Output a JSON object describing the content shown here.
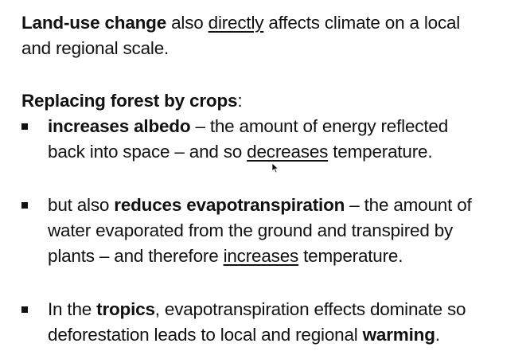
{
  "intro": {
    "bold": "Land-use change",
    "text1": " also ",
    "underlined": "directly",
    "text2": " affects climate on a local",
    "line2": "and regional scale."
  },
  "heading": {
    "bold": "Replacing forest by crops",
    "colon": ":"
  },
  "bullets": [
    {
      "bold": "increases albedo",
      "text1": " – the amount of energy reflected",
      "line2_pre": "back into space – and so ",
      "underlined": "decreases",
      "line2_post": " temperature."
    },
    {
      "pre": "but also ",
      "bold": "reduces evapotranspiration",
      "text1": " – the amount of",
      "line2": "water evaporated from the ground and transpired by",
      "line3_pre": "plants – and therefore ",
      "underlined": "increases",
      "line3_post": " temperature."
    },
    {
      "pre": "In the ",
      "bold": "tropics",
      "text1": ", evapotranspiration effects dominate so",
      "line2_pre": "deforestation leads to local and regional ",
      "bold2": "warming",
      "line2_post": "."
    }
  ],
  "icons": {
    "cursor": "mouse-pointer-icon",
    "bullet": "square-bullet-icon"
  }
}
